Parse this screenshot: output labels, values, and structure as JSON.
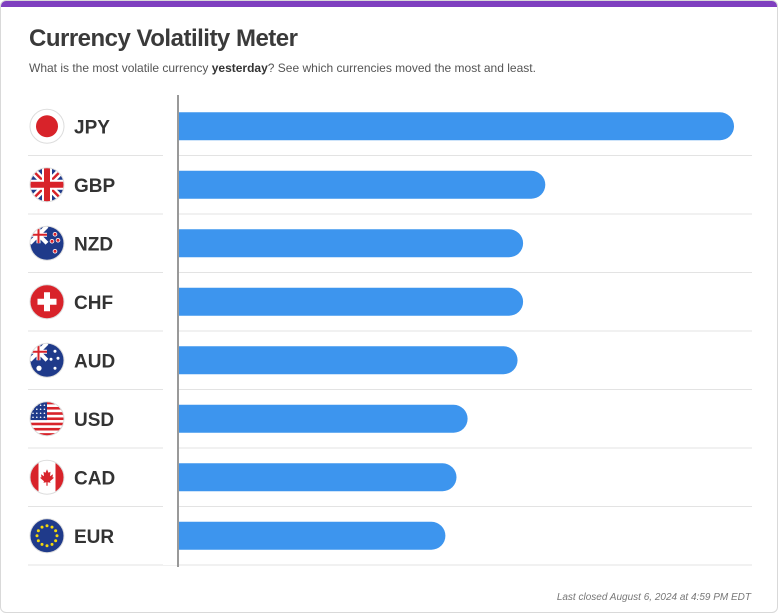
{
  "header": {
    "title": "Currency Volatility Meter",
    "subtitle_before": "What is the most volatile currency ",
    "subtitle_bold": "yesterday",
    "subtitle_after": "? See which currencies moved the most and least."
  },
  "footer": {
    "last_closed": "Last closed August 6, 2024 at 4:59 PM EDT"
  },
  "colors": {
    "accent_bar": "#7f3fbf",
    "bar": "#3d95ee",
    "axis": "#999999",
    "divider": "#e3e3e3",
    "label": "#333333"
  },
  "chart_data": {
    "type": "bar",
    "orientation": "horizontal",
    "categories": [
      "JPY",
      "GBP",
      "NZD",
      "CHF",
      "AUD",
      "USD",
      "CAD",
      "EUR"
    ],
    "values": [
      100,
      66,
      62,
      62,
      61,
      52,
      50,
      48
    ],
    "flags": [
      "japan-flag-icon",
      "uk-flag-icon",
      "new-zealand-flag-icon",
      "switzerland-flag-icon",
      "australia-flag-icon",
      "usa-flag-icon",
      "canada-flag-icon",
      "eu-flag-icon"
    ],
    "xlim": [
      0,
      100
    ],
    "grid": false,
    "legend": "none"
  }
}
